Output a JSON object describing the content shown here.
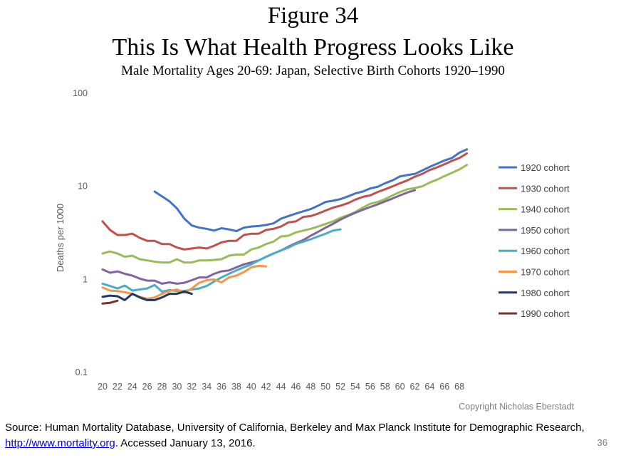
{
  "slide": {
    "figure_label": "Figure 34",
    "title": "This Is What Health Progress Looks Like",
    "subtitle": "Male Mortality Ages 20-69: Japan, Selective Birth Cohorts 1920–1990",
    "copyright": "Copyright Nicholas Eberstadt",
    "source_prefix": "Source: Human Mortality Database, University of California, Berkeley and Max Planck Institute for Demographic Research, ",
    "source_link": "http://www.mortality.org",
    "source_suffix": ". Accessed January 13, 2016.",
    "page_number": "36"
  },
  "chart_data": {
    "type": "line",
    "title": "Male Mortality Ages 20-69: Japan, Selective Birth Cohorts 1920–1990",
    "xlabel": "",
    "ylabel": "Deaths per 1000",
    "y_scale": "log",
    "ylim": [
      0.1,
      100
    ],
    "xlim": [
      20,
      69
    ],
    "x_ticks": [
      "20",
      "22",
      "24",
      "26",
      "28",
      "30",
      "32",
      "34",
      "36",
      "38",
      "40",
      "42",
      "44",
      "46",
      "48",
      "50",
      "52",
      "54",
      "56",
      "58",
      "60",
      "62",
      "64",
      "66",
      "68"
    ],
    "y_ticks": [
      "0.1",
      "1",
      "10",
      "100"
    ],
    "grid": false,
    "legend_position": "right",
    "series": [
      {
        "name": "1920 cohort",
        "color": "#4472c4",
        "x": [
          27,
          28,
          29,
          30,
          31,
          32,
          33,
          34,
          35,
          36,
          37,
          38,
          39,
          40,
          41,
          42,
          43,
          44,
          45,
          46,
          47,
          48,
          49,
          50,
          51,
          52,
          53,
          54,
          55,
          56,
          57,
          58,
          59,
          60,
          61,
          62,
          63,
          64,
          65,
          66,
          67,
          68,
          69
        ],
        "y": [
          8.8,
          7.8,
          6.9,
          5.8,
          4.5,
          3.8,
          3.6,
          3.5,
          3.35,
          3.55,
          3.45,
          3.3,
          3.6,
          3.7,
          3.75,
          3.85,
          4.0,
          4.5,
          4.8,
          5.1,
          5.4,
          5.7,
          6.2,
          6.8,
          7.0,
          7.3,
          7.8,
          8.4,
          8.8,
          9.5,
          9.9,
          10.8,
          11.6,
          12.8,
          13.2,
          13.6,
          14.8,
          16.2,
          17.5,
          19.0,
          20.2,
          23.0,
          25.0
        ]
      },
      {
        "name": "1930 cohort",
        "color": "#c0504d",
        "x": [
          20,
          21,
          22,
          23,
          24,
          25,
          26,
          27,
          28,
          29,
          30,
          31,
          32,
          33,
          34,
          35,
          36,
          37,
          38,
          39,
          40,
          41,
          42,
          43,
          44,
          45,
          46,
          47,
          48,
          49,
          50,
          51,
          52,
          53,
          54,
          55,
          56,
          57,
          58,
          59,
          60,
          61,
          62,
          63,
          64,
          65,
          66,
          67,
          68,
          69
        ],
        "y": [
          4.2,
          3.4,
          3.0,
          3.0,
          3.1,
          2.8,
          2.6,
          2.6,
          2.4,
          2.4,
          2.2,
          2.1,
          2.15,
          2.2,
          2.15,
          2.3,
          2.5,
          2.6,
          2.6,
          3.0,
          3.1,
          3.1,
          3.4,
          3.5,
          3.7,
          4.1,
          4.2,
          4.7,
          4.8,
          5.1,
          5.5,
          5.9,
          6.2,
          6.6,
          7.2,
          7.7,
          8.0,
          8.7,
          9.3,
          10.0,
          10.8,
          11.6,
          12.7,
          13.6,
          15.0,
          16.0,
          17.3,
          18.8,
          20.2,
          22.6
        ]
      },
      {
        "name": "1940 cohort",
        "color": "#9bbb59",
        "x": [
          20,
          21,
          22,
          23,
          24,
          25,
          26,
          27,
          28,
          29,
          30,
          31,
          32,
          33,
          34,
          35,
          36,
          37,
          38,
          39,
          40,
          41,
          42,
          43,
          44,
          45,
          46,
          47,
          48,
          49,
          50,
          51,
          52,
          53,
          54,
          55,
          56,
          57,
          58,
          59,
          60,
          61,
          62,
          63,
          64,
          65,
          66,
          67,
          68,
          69
        ],
        "y": [
          1.9,
          2.0,
          1.9,
          1.75,
          1.8,
          1.65,
          1.6,
          1.55,
          1.52,
          1.52,
          1.65,
          1.52,
          1.52,
          1.6,
          1.6,
          1.62,
          1.65,
          1.8,
          1.85,
          1.85,
          2.1,
          2.2,
          2.4,
          2.55,
          2.9,
          2.95,
          3.2,
          3.35,
          3.5,
          3.7,
          3.95,
          4.2,
          4.6,
          4.9,
          5.3,
          5.9,
          6.5,
          6.8,
          7.3,
          8.0,
          8.7,
          9.3,
          9.6,
          10.0,
          11.0,
          11.8,
          12.9,
          14.0,
          15.2,
          17.0
        ]
      },
      {
        "name": "1950 cohort",
        "color": "#8064a2",
        "x": [
          20,
          21,
          22,
          23,
          24,
          25,
          26,
          27,
          28,
          29,
          30,
          31,
          32,
          33,
          34,
          35,
          36,
          37,
          38,
          39,
          40,
          41,
          42,
          43,
          44,
          45,
          46,
          47,
          48,
          49,
          50,
          51,
          52,
          53,
          54,
          55,
          56,
          57,
          58,
          59,
          60,
          61,
          62
        ],
        "y": [
          1.28,
          1.18,
          1.22,
          1.15,
          1.1,
          1.02,
          0.97,
          0.97,
          0.9,
          0.93,
          0.9,
          0.92,
          0.98,
          1.05,
          1.05,
          1.15,
          1.22,
          1.25,
          1.35,
          1.45,
          1.52,
          1.6,
          1.75,
          1.9,
          2.05,
          2.25,
          2.45,
          2.65,
          2.95,
          3.25,
          3.6,
          3.95,
          4.4,
          4.8,
          5.2,
          5.6,
          6.0,
          6.4,
          6.9,
          7.4,
          8.0,
          8.6,
          9.1
        ]
      },
      {
        "name": "1960 cohort",
        "color": "#4bacc6",
        "x": [
          20,
          21,
          22,
          23,
          24,
          25,
          26,
          27,
          28,
          29,
          30,
          31,
          32,
          33,
          34,
          35,
          36,
          37,
          38,
          39,
          40,
          41,
          42,
          43,
          44,
          45,
          46,
          47,
          48,
          49,
          50,
          51,
          52
        ],
        "y": [
          0.9,
          0.85,
          0.8,
          0.86,
          0.76,
          0.78,
          0.8,
          0.87,
          0.74,
          0.77,
          0.75,
          0.75,
          0.78,
          0.8,
          0.85,
          0.95,
          1.05,
          1.15,
          1.25,
          1.35,
          1.45,
          1.6,
          1.75,
          1.9,
          2.05,
          2.2,
          2.4,
          2.55,
          2.7,
          2.9,
          3.1,
          3.35,
          3.45
        ]
      },
      {
        "name": "1970 cohort",
        "color": "#f79646",
        "x": [
          20,
          21,
          22,
          23,
          24,
          25,
          26,
          27,
          28,
          29,
          30,
          31,
          32,
          33,
          34,
          35,
          36,
          37,
          38,
          39,
          40,
          41,
          42
        ],
        "y": [
          0.82,
          0.76,
          0.75,
          0.73,
          0.7,
          0.65,
          0.62,
          0.64,
          0.7,
          0.75,
          0.78,
          0.72,
          0.8,
          0.92,
          0.98,
          1.0,
          0.93,
          1.05,
          1.1,
          1.2,
          1.35,
          1.4,
          1.38
        ]
      },
      {
        "name": "1980 cohort",
        "color": "#1f3864",
        "x": [
          20,
          21,
          22,
          23,
          24,
          25,
          26,
          27,
          28,
          29,
          30,
          31,
          32
        ],
        "y": [
          0.65,
          0.67,
          0.66,
          0.6,
          0.7,
          0.64,
          0.6,
          0.6,
          0.64,
          0.7,
          0.7,
          0.74,
          0.7
        ]
      },
      {
        "name": "1990 cohort",
        "color": "#7f2f2f",
        "x": [
          20,
          21,
          22
        ],
        "y": [
          0.55,
          0.56,
          0.59
        ]
      }
    ]
  }
}
